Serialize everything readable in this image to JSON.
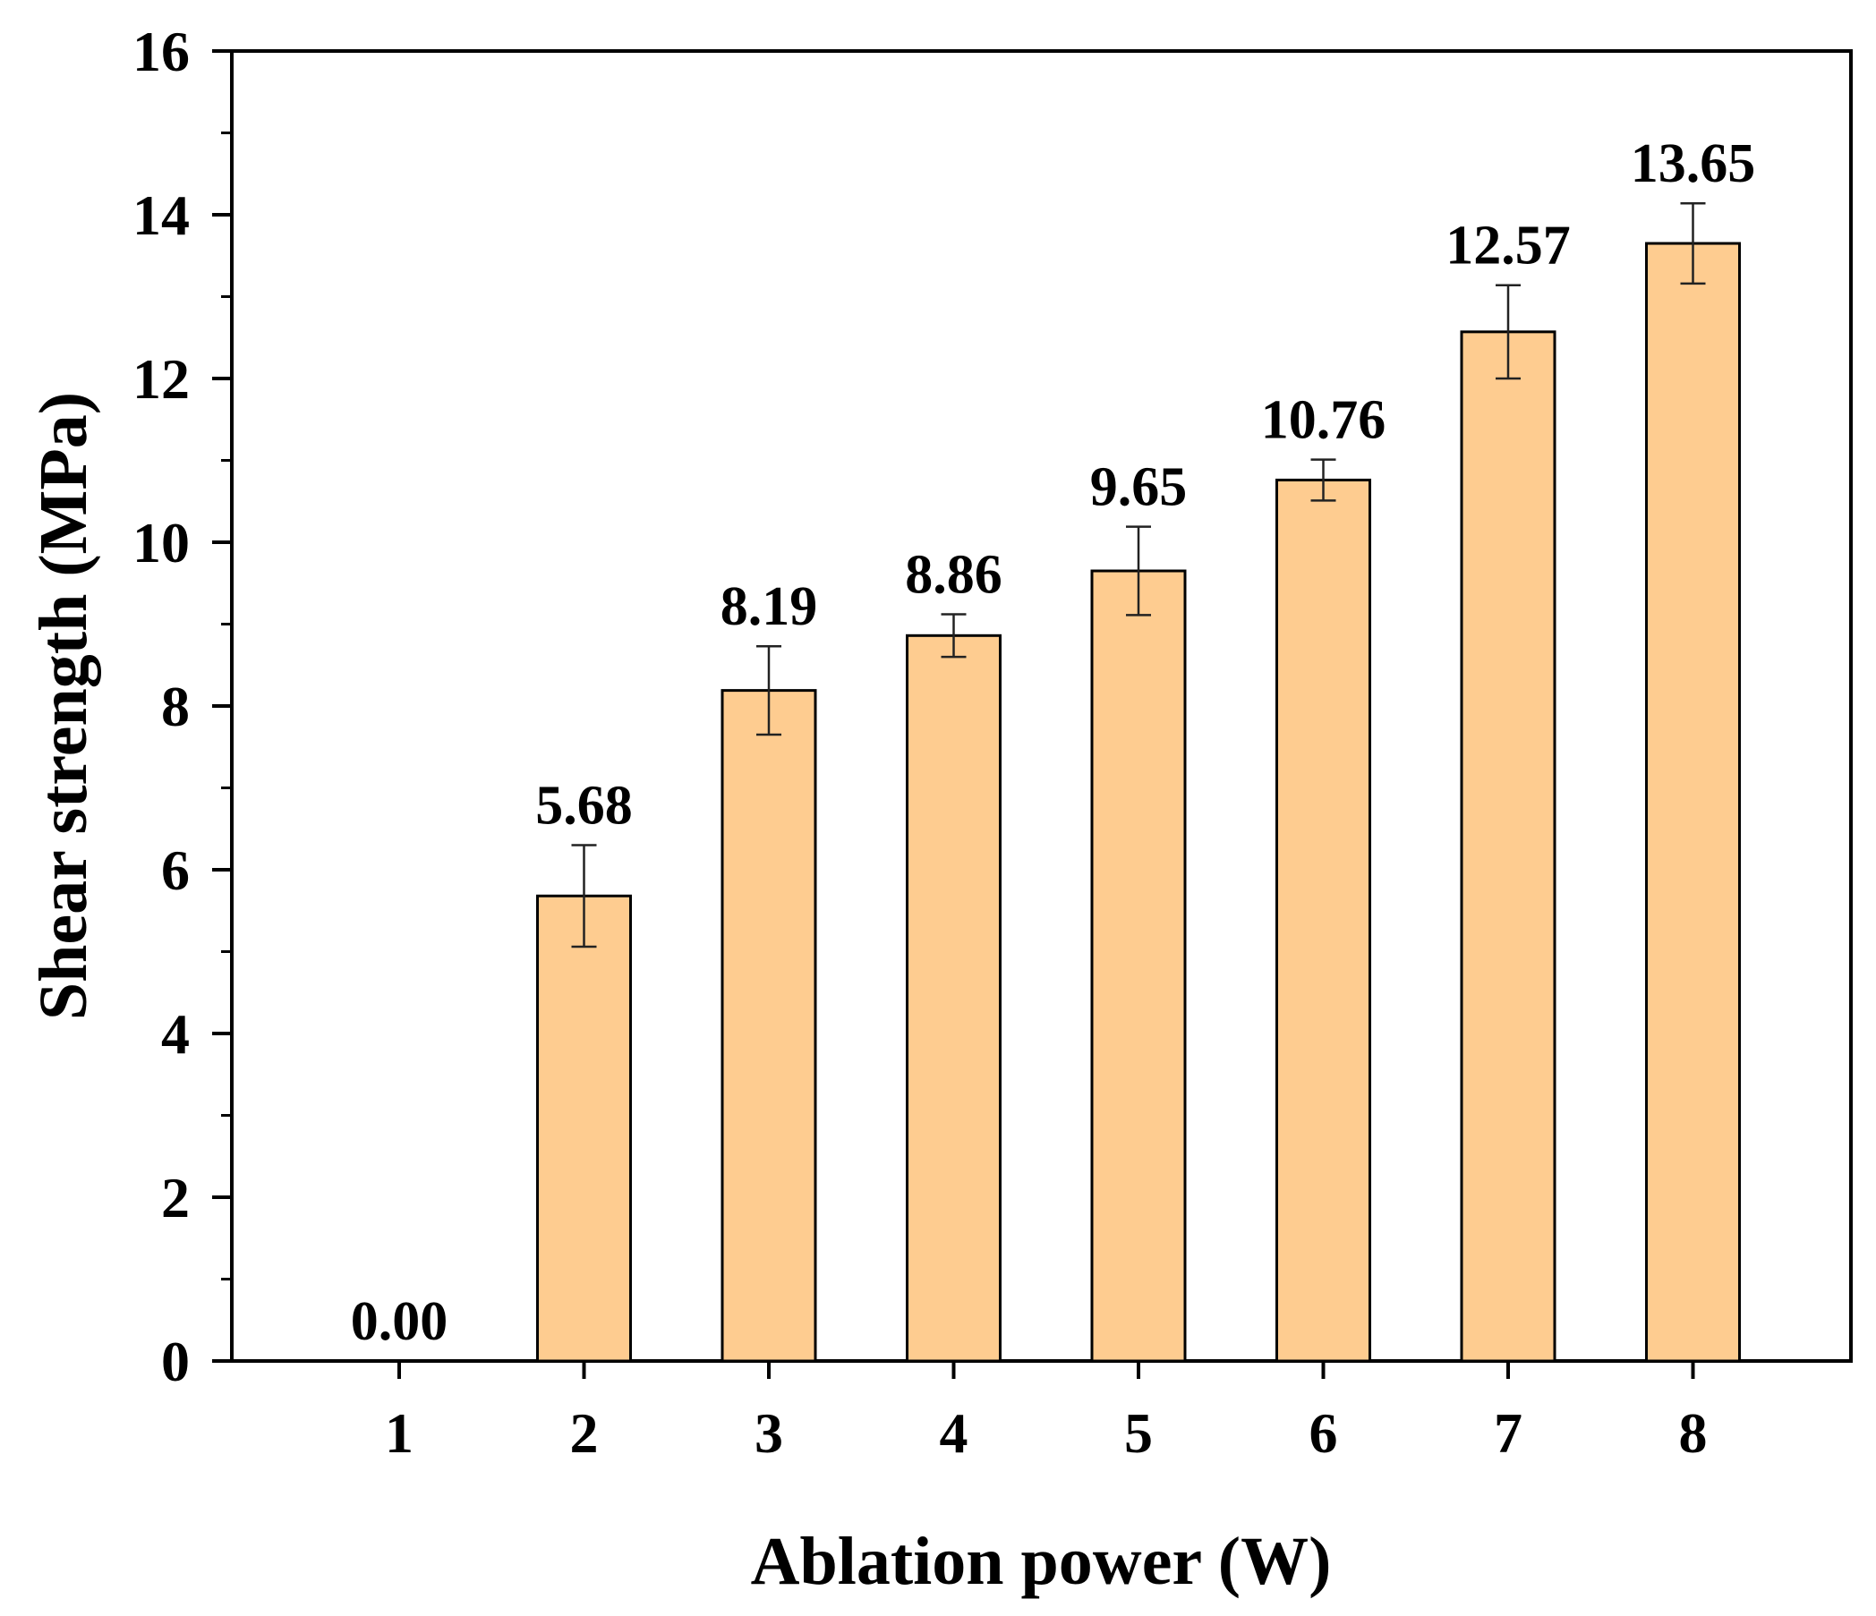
{
  "chart_data": {
    "type": "bar",
    "title": "",
    "xlabel": "Ablation power (W)",
    "ylabel": "Shear strength (MPa)",
    "categories": [
      "1",
      "2",
      "3",
      "4",
      "5",
      "6",
      "7",
      "8"
    ],
    "values": [
      0.0,
      5.68,
      8.19,
      8.86,
      9.65,
      10.76,
      12.57,
      13.65
    ],
    "value_labels": [
      "0.00",
      "5.68",
      "8.19",
      "8.86",
      "9.65",
      "10.76",
      "12.57",
      "13.65"
    ],
    "errors": [
      0,
      0.62,
      0.54,
      0.26,
      0.54,
      0.25,
      0.57,
      0.49
    ],
    "ylim": [
      0,
      16
    ],
    "yticks": [
      0,
      2,
      4,
      6,
      8,
      10,
      12,
      14,
      16
    ],
    "minor_yticks": true,
    "grid": false,
    "legend": "none",
    "colors": {
      "bar_fill": "#FECC90",
      "bar_stroke": "#000000",
      "axis": "#000000",
      "text": "#000000"
    }
  }
}
